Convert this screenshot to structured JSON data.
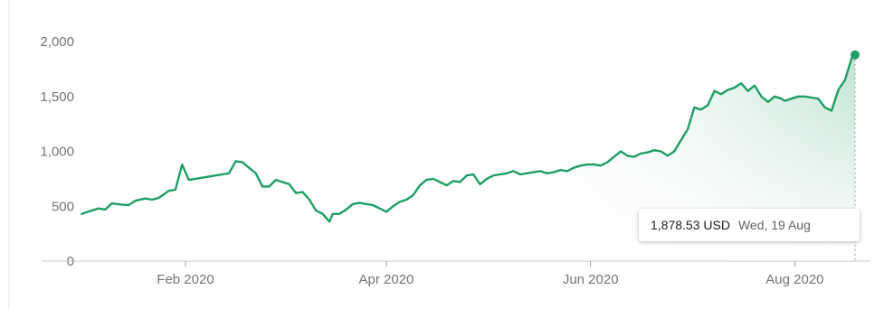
{
  "chart_data": {
    "type": "area",
    "title": "",
    "xlabel": "",
    "ylabel": "",
    "ylim": [
      0,
      2000
    ],
    "yticks": [
      0,
      500,
      1000,
      1500,
      2000
    ],
    "ytick_labels": [
      "0",
      "500",
      "1,000",
      "1,500",
      "2,000"
    ],
    "xticks": [
      {
        "date": "2020-02-01",
        "label": "Feb 2020"
      },
      {
        "date": "2020-04-01",
        "label": "Apr 2020"
      },
      {
        "date": "2020-06-01",
        "label": "Jun 2020"
      },
      {
        "date": "2020-08-01",
        "label": "Aug 2020"
      }
    ],
    "grid": false,
    "legend": "none",
    "line_color": "#1e9e62",
    "fill_color": "#1e9e62",
    "series": [
      {
        "x": [
          "2020-01-01",
          "2020-01-03",
          "2020-01-06",
          "2020-01-08",
          "2020-01-10",
          "2020-01-13",
          "2020-01-15",
          "2020-01-17",
          "2020-01-20",
          "2020-01-22",
          "2020-01-24",
          "2020-01-27",
          "2020-01-29",
          "2020-01-31",
          "2020-02-02",
          "2020-02-04",
          "2020-02-06",
          "2020-02-08",
          "2020-02-10",
          "2020-02-12",
          "2020-02-14",
          "2020-02-16",
          "2020-02-18",
          "2020-02-20",
          "2020-02-22",
          "2020-02-24",
          "2020-02-26",
          "2020-02-28",
          "2020-03-01",
          "2020-03-03",
          "2020-03-05",
          "2020-03-07",
          "2020-03-09",
          "2020-03-11",
          "2020-03-13",
          "2020-03-15",
          "2020-03-16",
          "2020-03-18",
          "2020-03-20",
          "2020-03-22",
          "2020-03-24",
          "2020-03-26",
          "2020-03-28",
          "2020-03-30",
          "2020-04-01",
          "2020-04-03",
          "2020-04-05",
          "2020-04-07",
          "2020-04-09",
          "2020-04-11",
          "2020-04-13",
          "2020-04-15",
          "2020-04-17",
          "2020-04-19",
          "2020-04-21",
          "2020-04-23",
          "2020-04-25",
          "2020-04-27",
          "2020-04-29",
          "2020-05-01",
          "2020-05-03",
          "2020-05-05",
          "2020-05-07",
          "2020-05-09",
          "2020-05-11",
          "2020-05-13",
          "2020-05-15",
          "2020-05-17",
          "2020-05-19",
          "2020-05-21",
          "2020-05-23",
          "2020-05-25",
          "2020-05-27",
          "2020-05-29",
          "2020-05-31",
          "2020-06-02",
          "2020-06-04",
          "2020-06-06",
          "2020-06-08",
          "2020-06-10",
          "2020-06-12",
          "2020-06-14",
          "2020-06-16",
          "2020-06-18",
          "2020-06-20",
          "2020-06-22",
          "2020-06-24",
          "2020-06-26",
          "2020-06-28",
          "2020-06-30",
          "2020-07-02",
          "2020-07-04",
          "2020-07-06",
          "2020-07-08",
          "2020-07-10",
          "2020-07-12",
          "2020-07-14",
          "2020-07-16",
          "2020-07-18",
          "2020-07-20",
          "2020-07-22",
          "2020-07-24",
          "2020-07-26",
          "2020-07-28",
          "2020-07-29",
          "2020-07-31",
          "2020-08-02",
          "2020-08-04",
          "2020-08-06",
          "2020-08-08",
          "2020-08-10",
          "2020-08-12",
          "2020-08-14",
          "2020-08-16",
          "2020-08-18",
          "2020-08-19"
        ],
        "values": [
          430,
          450,
          480,
          470,
          525,
          515,
          510,
          550,
          570,
          560,
          575,
          640,
          650,
          880,
          740,
          750,
          760,
          770,
          780,
          790,
          800,
          910,
          900,
          850,
          800,
          680,
          680,
          740,
          720,
          700,
          620,
          630,
          560,
          460,
          430,
          360,
          430,
          430,
          470,
          520,
          530,
          520,
          510,
          480,
          450,
          500,
          540,
          560,
          600,
          690,
          740,
          750,
          720,
          690,
          730,
          720,
          780,
          790,
          700,
          750,
          780,
          790,
          800,
          820,
          790,
          800,
          810,
          820,
          800,
          810,
          830,
          820,
          850,
          870,
          880,
          880,
          870,
          900,
          950,
          1000,
          960,
          950,
          980,
          990,
          1010,
          1000,
          960,
          1000,
          1100,
          1200,
          1400,
          1380,
          1420,
          1550,
          1520,
          1560,
          1580,
          1620,
          1550,
          1600,
          1500,
          1450,
          1500,
          1480,
          1460,
          1480,
          1500,
          1500,
          1490,
          1480,
          1400,
          1370,
          1560,
          1650,
          1850,
          1878.53
        ]
      }
    ],
    "tooltip": {
      "value": "1,878.53 USD",
      "date": "Wed, 19 Aug",
      "x": "2020-08-19",
      "y": 1878.53
    }
  }
}
